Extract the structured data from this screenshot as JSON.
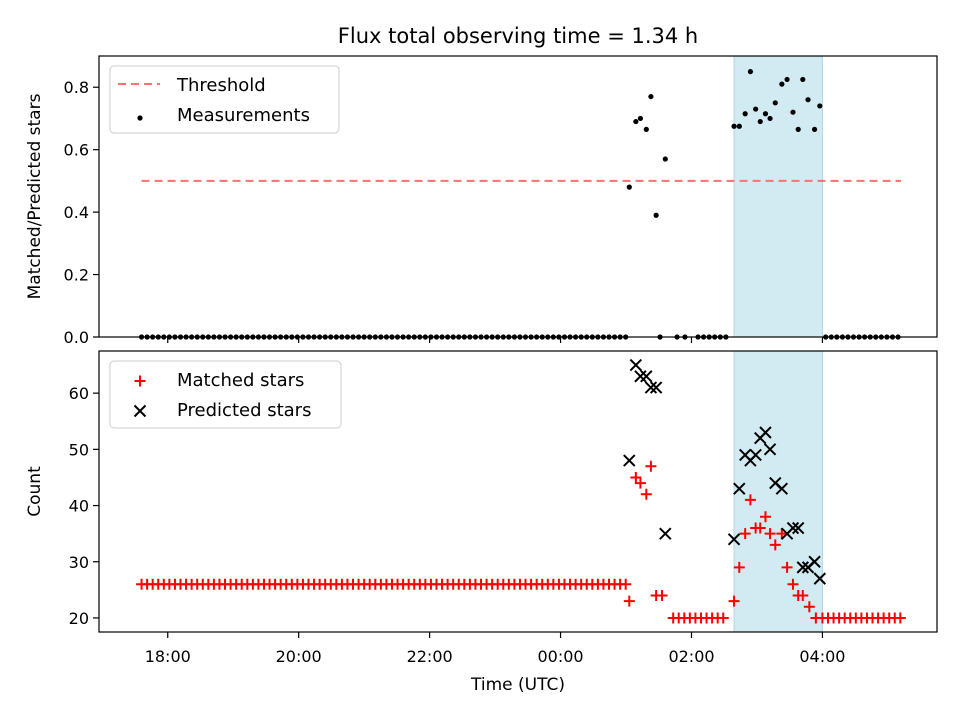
{
  "chart_data": {
    "title": "Flux total observing time = 1.34 h",
    "xlabel": "Time (UTC)",
    "x_range_hours": [
      16.95,
      29.75
    ],
    "x_ticks": [
      {
        "value": 18,
        "label": "18:00"
      },
      {
        "value": 20,
        "label": "20:00"
      },
      {
        "value": 22,
        "label": "22:00"
      },
      {
        "value": 24,
        "label": "00:00"
      },
      {
        "value": 26,
        "label": "02:00"
      },
      {
        "value": 28,
        "label": "04:00"
      }
    ],
    "highlight_span_hours": [
      26.65,
      28.0
    ],
    "colors": {
      "threshold": "#ff7070",
      "measurements": "#000000",
      "matched": "#ff0000",
      "predicted": "#000000",
      "span": "#add8e6"
    },
    "panels": [
      {
        "type": "scatter",
        "ylabel": "Matched/Predicted stars",
        "ylim": [
          0,
          0.9
        ],
        "y_ticks": [
          0.0,
          0.2,
          0.4,
          0.6,
          0.8
        ],
        "y_decimals": 1,
        "legend_position": "top-left",
        "legend": [
          {
            "label": "Threshold",
            "symbol": "dash",
            "color_key": "threshold"
          },
          {
            "label": "Measurements",
            "symbol": "dot",
            "color_key": "measurements"
          }
        ],
        "threshold_line": {
          "y": 0.5,
          "x_from": 17.6,
          "x_to": 29.2
        },
        "zero_run": {
          "from": 17.6,
          "to": 25.0,
          "step": 0.085
        },
        "zero_run_2": {
          "from": 26.1,
          "to": 26.6,
          "step": 0.085
        },
        "zero_run_3": {
          "from": 28.05,
          "to": 29.2,
          "step": 0.085
        },
        "points": [
          [
            25.05,
            0.48
          ],
          [
            25.15,
            0.69
          ],
          [
            25.22,
            0.7
          ],
          [
            25.31,
            0.665
          ],
          [
            25.38,
            0.77
          ],
          [
            25.46,
            0.39
          ],
          [
            25.52,
            0.0
          ],
          [
            25.6,
            0.57
          ],
          [
            25.78,
            0.0
          ],
          [
            25.9,
            0.0
          ],
          [
            26.65,
            0.675
          ],
          [
            26.73,
            0.675
          ],
          [
            26.82,
            0.715
          ],
          [
            26.9,
            0.85
          ],
          [
            26.98,
            0.73
          ],
          [
            27.05,
            0.69
          ],
          [
            27.13,
            0.715
          ],
          [
            27.2,
            0.7
          ],
          [
            27.28,
            0.75
          ],
          [
            27.38,
            0.81
          ],
          [
            27.46,
            0.825
          ],
          [
            27.55,
            0.72
          ],
          [
            27.63,
            0.665
          ],
          [
            27.7,
            0.825
          ],
          [
            27.78,
            0.76
          ],
          [
            27.88,
            0.665
          ],
          [
            27.96,
            0.74
          ]
        ]
      },
      {
        "type": "scatter",
        "ylabel": "Count",
        "ylim": [
          17.5,
          67.5
        ],
        "y_ticks": [
          20,
          30,
          40,
          50,
          60
        ],
        "y_decimals": 0,
        "legend_position": "top-left",
        "legend": [
          {
            "label": "Matched stars",
            "symbol": "plus",
            "color_key": "matched"
          },
          {
            "label": "Predicted stars",
            "symbol": "cross",
            "color_key": "predicted"
          }
        ],
        "baseline_matched": {
          "y": 26,
          "from": 17.6,
          "to": 25.0,
          "step": 0.085
        },
        "baseline_matched_2": {
          "y": 20,
          "from": 25.72,
          "to": 26.55,
          "step": 0.085
        },
        "baseline_matched_3": {
          "y": 20,
          "from": 28.0,
          "to": 29.2,
          "step": 0.085
        },
        "matched": [
          [
            25.05,
            23
          ],
          [
            25.15,
            45
          ],
          [
            25.22,
            44
          ],
          [
            25.31,
            42
          ],
          [
            25.38,
            47
          ],
          [
            25.46,
            24
          ],
          [
            25.55,
            24
          ],
          [
            26.65,
            23
          ],
          [
            26.73,
            29
          ],
          [
            26.82,
            35
          ],
          [
            26.9,
            41
          ],
          [
            26.98,
            36
          ],
          [
            27.05,
            36
          ],
          [
            27.13,
            38
          ],
          [
            27.2,
            35
          ],
          [
            27.28,
            33
          ],
          [
            27.38,
            35
          ],
          [
            27.46,
            29
          ],
          [
            27.55,
            26
          ],
          [
            27.63,
            24
          ],
          [
            27.7,
            24
          ],
          [
            27.8,
            22
          ],
          [
            27.9,
            20
          ]
        ],
        "predicted": [
          [
            25.05,
            48
          ],
          [
            25.15,
            65
          ],
          [
            25.22,
            63
          ],
          [
            25.31,
            63
          ],
          [
            25.38,
            61
          ],
          [
            25.46,
            61
          ],
          [
            25.6,
            35
          ],
          [
            26.65,
            34
          ],
          [
            26.73,
            43
          ],
          [
            26.82,
            49
          ],
          [
            26.9,
            48
          ],
          [
            26.98,
            49
          ],
          [
            27.05,
            52
          ],
          [
            27.13,
            53
          ],
          [
            27.2,
            50
          ],
          [
            27.28,
            44
          ],
          [
            27.38,
            43
          ],
          [
            27.46,
            35
          ],
          [
            27.55,
            36
          ],
          [
            27.63,
            36
          ],
          [
            27.7,
            29
          ],
          [
            27.78,
            29
          ],
          [
            27.88,
            30
          ],
          [
            27.96,
            27
          ]
        ]
      }
    ]
  }
}
